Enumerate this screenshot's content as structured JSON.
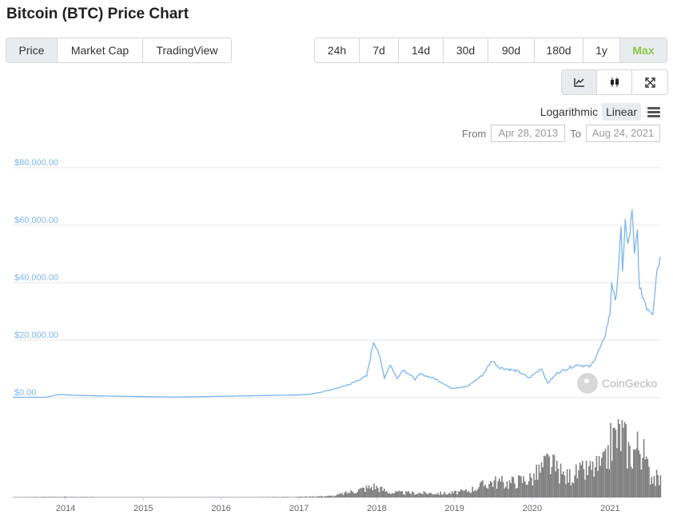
{
  "title": "Bitcoin (BTC) Price Chart",
  "tabs": [
    "Price",
    "Market Cap",
    "TradingView"
  ],
  "ranges": [
    "24h",
    "7d",
    "14d",
    "30d",
    "90d",
    "180d",
    "1y",
    "Max"
  ],
  "chart_types": [
    {
      "icon": "line-chart-icon"
    },
    {
      "icon": "candlestick-icon"
    },
    {
      "icon": "fullscreen-icon"
    }
  ],
  "scale": {
    "logarithmic": "Logarithmic",
    "linear": "Linear",
    "active": "Linear"
  },
  "date_range": {
    "from_label": "From",
    "from": "Apr 28, 2013",
    "to_label": "To",
    "to": "Aug 24, 2021"
  },
  "watermark": "CoinGecko",
  "colors": {
    "line": "#7cb5ec",
    "volume": "#808080",
    "accent": "#8dc647",
    "axis_label": "#7cb5ec"
  },
  "chart_data": {
    "type": "line",
    "title": "",
    "xlabel": "",
    "ylabel": "",
    "x_tick_labels": [
      "2014",
      "2015",
      "2016",
      "2017",
      "2018",
      "2019",
      "2020",
      "2021"
    ],
    "y_tick_labels": [
      "$0.00",
      "$20,000.00",
      "$40,000.00",
      "$60,000.00",
      "$80,000.00"
    ],
    "ylim": [
      0,
      80000
    ],
    "xlim": [
      "2013-04-28",
      "2021-08-24"
    ],
    "grid": true,
    "series": [
      {
        "values": [
          [
            "2013-04-28",
            135
          ],
          [
            "2013-10-01",
            130
          ],
          [
            "2013-11-30",
            1120
          ],
          [
            "2014-02-01",
            850
          ],
          [
            "2014-06-01",
            620
          ],
          [
            "2014-12-01",
            380
          ],
          [
            "2015-06-01",
            240
          ],
          [
            "2015-12-01",
            420
          ],
          [
            "2016-06-01",
            680
          ],
          [
            "2016-12-31",
            960
          ],
          [
            "2017-03-01",
            1200
          ],
          [
            "2017-06-12",
            2900
          ],
          [
            "2017-09-01",
            4800
          ],
          [
            "2017-11-15",
            7500
          ],
          [
            "2017-12-17",
            19500
          ],
          [
            "2018-01-05",
            17000
          ],
          [
            "2018-02-06",
            7000
          ],
          [
            "2018-03-05",
            11500
          ],
          [
            "2018-04-06",
            6700
          ],
          [
            "2018-05-05",
            9800
          ],
          [
            "2018-07-01",
            6400
          ],
          [
            "2018-07-25",
            8200
          ],
          [
            "2018-10-01",
            6600
          ],
          [
            "2018-11-20",
            4500
          ],
          [
            "2018-12-15",
            3300
          ],
          [
            "2019-03-01",
            3800
          ],
          [
            "2019-05-15",
            8000
          ],
          [
            "2019-06-26",
            13000
          ],
          [
            "2019-08-01",
            10500
          ],
          [
            "2019-10-25",
            9200
          ],
          [
            "2019-12-18",
            6800
          ],
          [
            "2020-02-13",
            10300
          ],
          [
            "2020-03-13",
            5000
          ],
          [
            "2020-05-01",
            8800
          ],
          [
            "2020-08-01",
            11500
          ],
          [
            "2020-10-01",
            10700
          ],
          [
            "2020-11-30",
            19500
          ],
          [
            "2020-12-31",
            29000
          ],
          [
            "2021-01-08",
            41000
          ],
          [
            "2021-01-25",
            32500
          ],
          [
            "2021-02-21",
            57000
          ],
          [
            "2021-02-28",
            45000
          ],
          [
            "2021-03-13",
            61000
          ],
          [
            "2021-03-25",
            52000
          ],
          [
            "2021-04-14",
            64000
          ],
          [
            "2021-04-25",
            49000
          ],
          [
            "2021-05-09",
            58000
          ],
          [
            "2021-05-19",
            37000
          ],
          [
            "2021-06-01",
            36000
          ],
          [
            "2021-06-22",
            31500
          ],
          [
            "2021-07-20",
            29800
          ],
          [
            "2021-08-10",
            45500
          ],
          [
            "2021-08-24",
            49000
          ]
        ]
      },
      {
        "values": [
          [
            "2013-04-28",
            0.3
          ],
          [
            "2013-11-30",
            0.8
          ],
          [
            "2014-06-01",
            0.4
          ],
          [
            "2015-06-01",
            0.3
          ],
          [
            "2016-06-01",
            0.4
          ],
          [
            "2017-01-01",
            0.8
          ],
          [
            "2017-06-12",
            2
          ],
          [
            "2017-12-17",
            14
          ],
          [
            "2018-03-01",
            6
          ],
          [
            "2018-12-01",
            5
          ],
          [
            "2019-03-01",
            8
          ],
          [
            "2019-06-26",
            20
          ],
          [
            "2019-09-01",
            18
          ],
          [
            "2020-01-01",
            24
          ],
          [
            "2020-03-13",
            44
          ],
          [
            "2020-06-01",
            25
          ],
          [
            "2020-12-01",
            40
          ],
          [
            "2021-01-08",
            72
          ],
          [
            "2021-02-21",
            80
          ],
          [
            "2021-04-01",
            55
          ],
          [
            "2021-05-19",
            66
          ],
          [
            "2021-07-01",
            30
          ],
          [
            "2021-08-24",
            20
          ]
        ]
      }
    ]
  }
}
